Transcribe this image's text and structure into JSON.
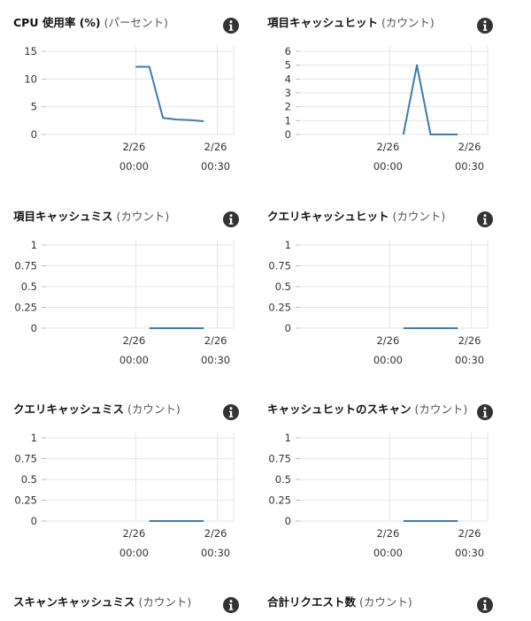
{
  "colors": {
    "series_line": "#3d7bb0",
    "gridline": "#e6e6e6",
    "axis_tick": "#bdbdbd",
    "info_icon": "#333333"
  },
  "chart_data": [
    {
      "type": "line",
      "title": "CPU 使用率 (%)",
      "unit": "(パーセント)",
      "icon": "info-icon",
      "ylim": [
        0,
        15
      ],
      "y_ticks": [
        "0",
        "5",
        "10",
        "15"
      ],
      "x_ticks": [
        {
          "date": "2/26",
          "time": "00:00"
        },
        {
          "date": "2/26",
          "time": "00:30"
        }
      ],
      "x_range": [
        -33,
        36
      ],
      "grid": true,
      "series": [
        {
          "x": [
            0,
            5,
            10,
            15,
            20,
            25
          ],
          "y": [
            12.2,
            12.2,
            3.0,
            2.7,
            2.6,
            2.4
          ]
        }
      ]
    },
    {
      "type": "line",
      "title": "項目キャッシュヒット",
      "unit": "(カウント)",
      "icon": "info-icon",
      "ylim": [
        0,
        6
      ],
      "y_ticks": [
        "0",
        "1",
        "2",
        "3",
        "4",
        "5",
        "6"
      ],
      "x_ticks": [
        {
          "date": "2/26",
          "time": "00:00"
        },
        {
          "date": "2/26",
          "time": "00:30"
        }
      ],
      "x_range": [
        -33,
        36
      ],
      "grid": true,
      "series": [
        {
          "x": [
            5,
            10,
            15,
            20,
            25
          ],
          "y": [
            0,
            5,
            0,
            0,
            0
          ]
        }
      ]
    },
    {
      "type": "line",
      "title": "項目キャッシュミス",
      "unit": "(カウント)",
      "icon": "info-icon",
      "ylim": [
        0,
        1
      ],
      "y_ticks": [
        "0",
        "0.25",
        "0.5",
        "0.75",
        "1"
      ],
      "x_ticks": [
        {
          "date": "2/26",
          "time": "00:00"
        },
        {
          "date": "2/26",
          "time": "00:30"
        }
      ],
      "x_range": [
        -33,
        36
      ],
      "grid": true,
      "series": [
        {
          "x": [
            5,
            10,
            15,
            20,
            25
          ],
          "y": [
            0,
            0,
            0,
            0,
            0
          ]
        }
      ]
    },
    {
      "type": "line",
      "title": "クエリキャッシュヒット",
      "unit": "(カウント)",
      "icon": "info-icon",
      "ylim": [
        0,
        1
      ],
      "y_ticks": [
        "0",
        "0.25",
        "0.5",
        "0.75",
        "1"
      ],
      "x_ticks": [
        {
          "date": "2/26",
          "time": "00:00"
        },
        {
          "date": "2/26",
          "time": "00:30"
        }
      ],
      "x_range": [
        -33,
        36
      ],
      "grid": true,
      "series": [
        {
          "x": [
            5,
            10,
            15,
            20,
            25
          ],
          "y": [
            0,
            0,
            0,
            0,
            0
          ]
        }
      ]
    },
    {
      "type": "line",
      "title": "クエリキャッシュミス",
      "unit": "(カウント)",
      "icon": "info-icon",
      "ylim": [
        0,
        1
      ],
      "y_ticks": [
        "0",
        "0.25",
        "0.5",
        "0.75",
        "1"
      ],
      "x_ticks": [
        {
          "date": "2/26",
          "time": "00:00"
        },
        {
          "date": "2/26",
          "time": "00:30"
        }
      ],
      "x_range": [
        -33,
        36
      ],
      "grid": true,
      "series": [
        {
          "x": [
            5,
            10,
            15,
            20,
            25
          ],
          "y": [
            0,
            0,
            0,
            0,
            0
          ]
        }
      ]
    },
    {
      "type": "line",
      "title": "キャッシュヒットのスキャン",
      "unit": "(カウント)",
      "icon": "info-icon",
      "ylim": [
        0,
        1
      ],
      "y_ticks": [
        "0",
        "0.25",
        "0.5",
        "0.75",
        "1"
      ],
      "x_ticks": [
        {
          "date": "2/26",
          "time": "00:00"
        },
        {
          "date": "2/26",
          "time": "00:30"
        }
      ],
      "x_range": [
        -33,
        36
      ],
      "grid": true,
      "series": [
        {
          "x": [
            5,
            10,
            15,
            20,
            25
          ],
          "y": [
            0,
            0,
            0,
            0,
            0
          ]
        }
      ]
    },
    {
      "type": "line",
      "title": "スキャンキャッシュミス",
      "unit": "(カウント)",
      "icon": "info-icon",
      "header_only": true
    },
    {
      "type": "line",
      "title": "合計リクエスト数",
      "unit": "(カウント)",
      "icon": "info-icon",
      "header_only": true
    }
  ]
}
